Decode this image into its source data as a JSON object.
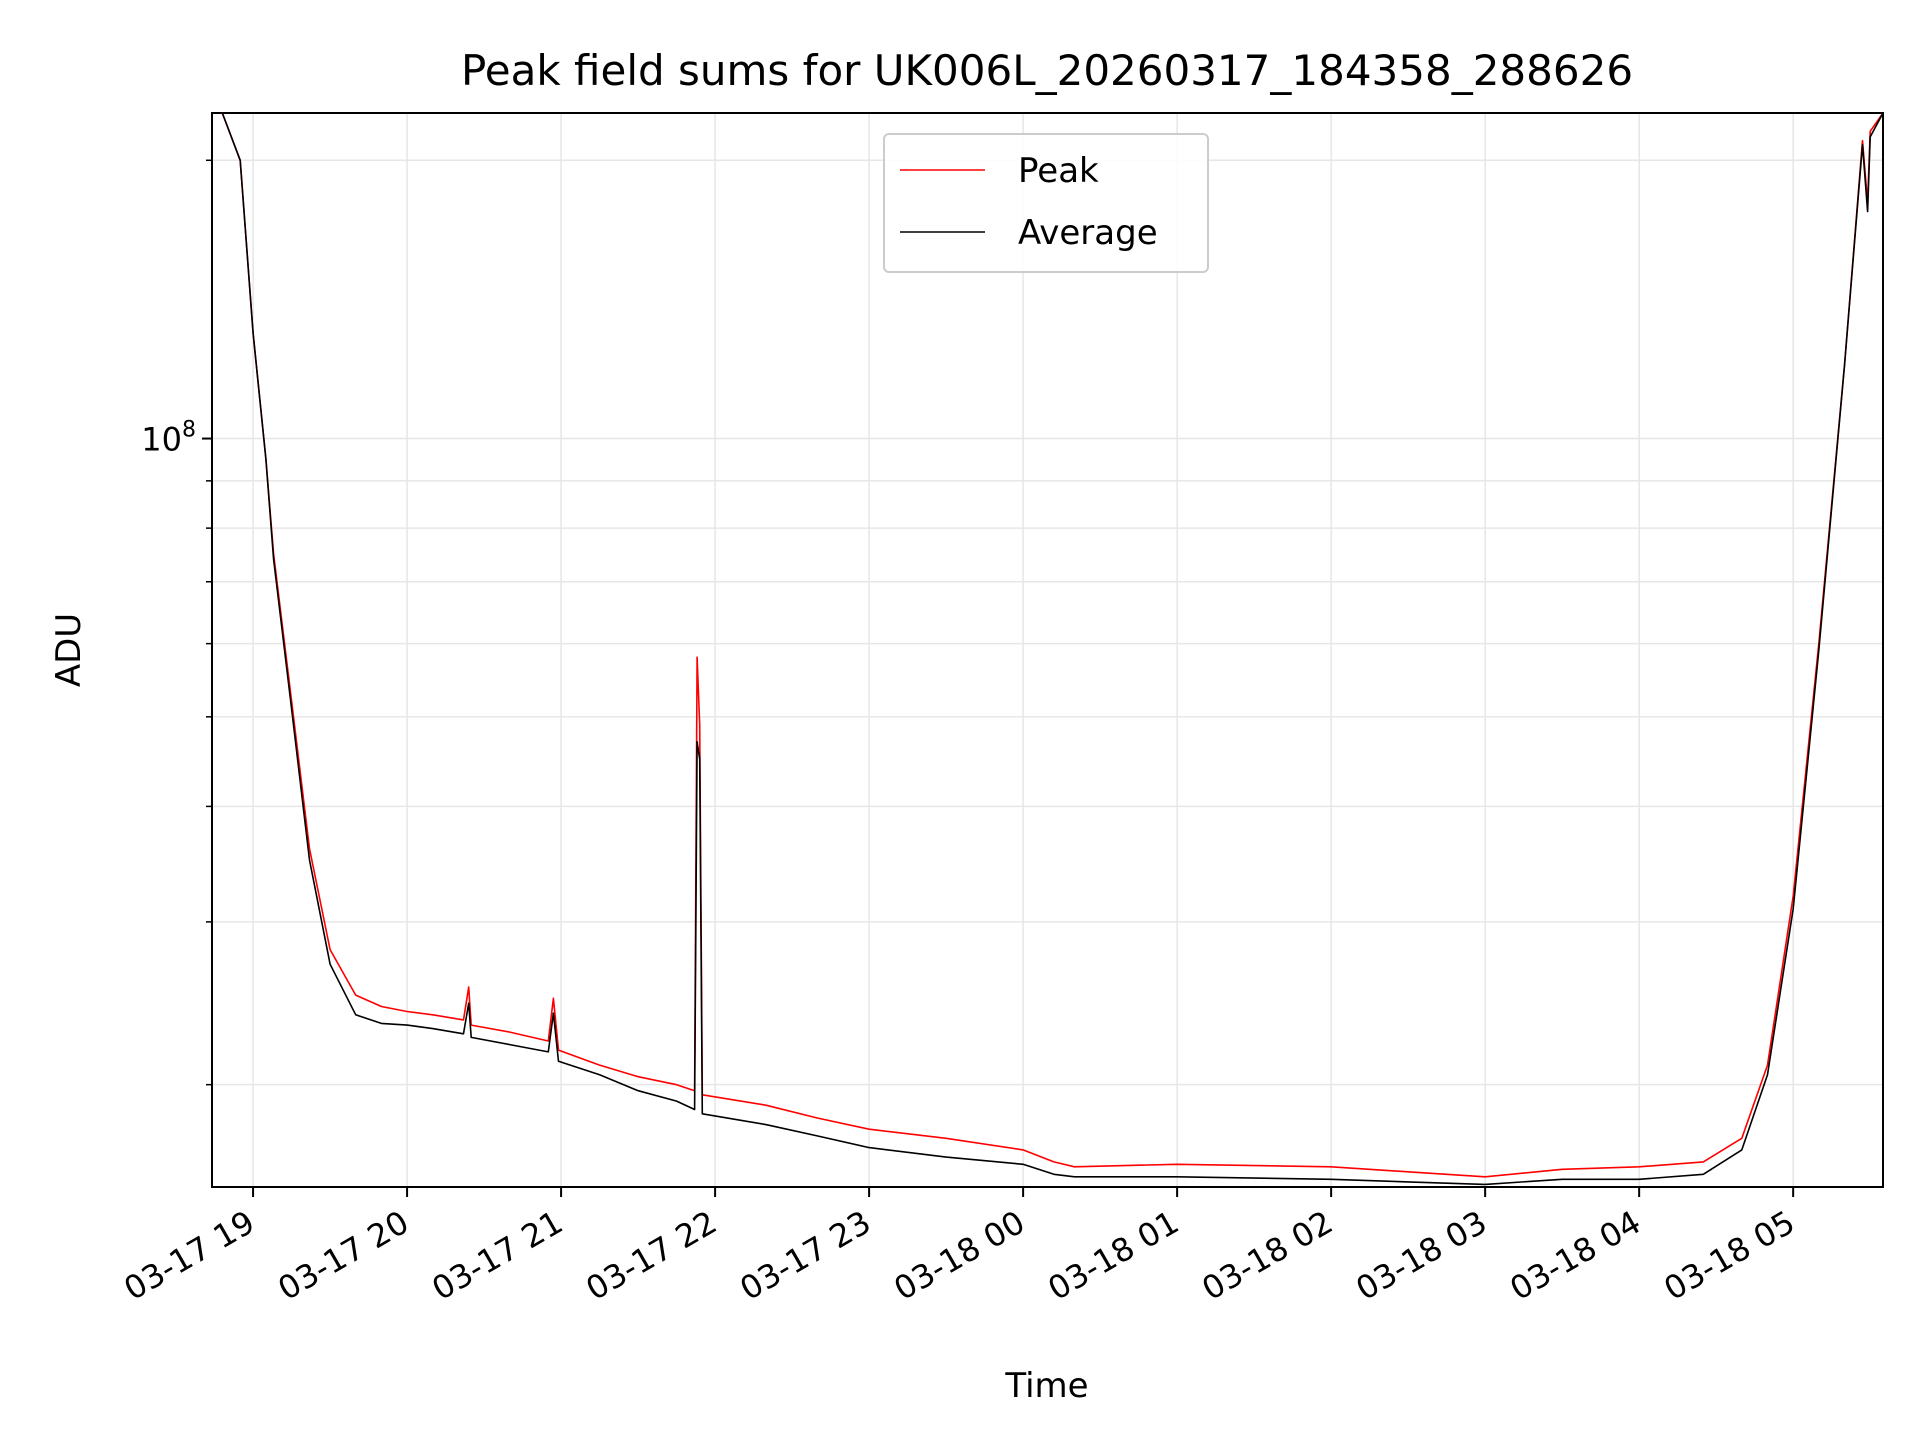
{
  "chart_data": {
    "type": "line",
    "title": "Peak field sums for UK006L_20260317_184358_288626",
    "xlabel": "Time",
    "ylabel": "ADU",
    "x_range": [
      "2026-03-17 18:44",
      "2026-03-18 05:35"
    ],
    "x_ticks": [
      "03-17 19",
      "03-17 20",
      "03-17 21",
      "03-17 22",
      "03-17 23",
      "03-18 00",
      "03-18 01",
      "03-18 02",
      "03-18 03",
      "03-18 04",
      "03-18 05"
    ],
    "y_scale": "log",
    "ylim": [
      15500000,
      225000000
    ],
    "y_major_tick": {
      "value": 100000000,
      "base": "10",
      "exp": "8"
    },
    "y_minor_ticks": [
      20000000,
      30000000,
      40000000,
      50000000,
      60000000,
      70000000,
      80000000,
      90000000,
      200000000
    ],
    "grid": true,
    "legend_position": "upper center",
    "colors": {
      "peak": "#ff0000",
      "average": "#000000",
      "grid": "#e6e6e6",
      "legend_border": "#cccccc"
    },
    "series": [
      {
        "name": "Peak",
        "key": "peak",
        "x": [
          "2026-03-17 18:48",
          "2026-03-17 18:55",
          "2026-03-17 19:00",
          "2026-03-17 19:05",
          "2026-03-17 19:08",
          "2026-03-17 19:15",
          "2026-03-17 19:22",
          "2026-03-17 19:30",
          "2026-03-17 19:40",
          "2026-03-17 19:50",
          "2026-03-17 20:00",
          "2026-03-17 20:10",
          "2026-03-17 20:22",
          "2026-03-17 20:24",
          "2026-03-17 20:25",
          "2026-03-17 20:40",
          "2026-03-17 20:55",
          "2026-03-17 20:57",
          "2026-03-17 20:59",
          "2026-03-17 21:15",
          "2026-03-17 21:30",
          "2026-03-17 21:45",
          "2026-03-17 21:52",
          "2026-03-17 21:53",
          "2026-03-17 21:54",
          "2026-03-17 21:55",
          "2026-03-17 22:20",
          "2026-03-17 22:40",
          "2026-03-17 23:00",
          "2026-03-17 23:30",
          "2026-03-18 00:00",
          "2026-03-18 00:12",
          "2026-03-18 00:20",
          "2026-03-18 01:00",
          "2026-03-18 02:00",
          "2026-03-18 02:30",
          "2026-03-18 03:00",
          "2026-03-18 03:30",
          "2026-03-18 04:00",
          "2026-03-18 04:25",
          "2026-03-18 04:40",
          "2026-03-18 04:50",
          "2026-03-18 05:00",
          "2026-03-18 05:10",
          "2026-03-18 05:20",
          "2026-03-18 05:27",
          "2026-03-18 05:29",
          "2026-03-18 05:30",
          "2026-03-18 05:35"
        ],
        "y": [
          225000000,
          200000000,
          130000000,
          95000000,
          75000000,
          52000000,
          36000000,
          28000000,
          25000000,
          24300000,
          24000000,
          23800000,
          23500000,
          25500000,
          23200000,
          22800000,
          22300000,
          24800000,
          21800000,
          21000000,
          20400000,
          20000000,
          19700000,
          58000000,
          49000000,
          19500000,
          19000000,
          18400000,
          17900000,
          17500000,
          17000000,
          16500000,
          16300000,
          16400000,
          16300000,
          16100000,
          15900000,
          16200000,
          16300000,
          16500000,
          17500000,
          21000000,
          32000000,
          60000000,
          120000000,
          210000000,
          180000000,
          215000000,
          225000000
        ]
      },
      {
        "name": "Average",
        "key": "average",
        "x": [
          "2026-03-17 18:48",
          "2026-03-17 18:55",
          "2026-03-17 19:00",
          "2026-03-17 19:05",
          "2026-03-17 19:08",
          "2026-03-17 19:15",
          "2026-03-17 19:22",
          "2026-03-17 19:30",
          "2026-03-17 19:40",
          "2026-03-17 19:50",
          "2026-03-17 20:00",
          "2026-03-17 20:10",
          "2026-03-17 20:22",
          "2026-03-17 20:24",
          "2026-03-17 20:25",
          "2026-03-17 20:40",
          "2026-03-17 20:55",
          "2026-03-17 20:57",
          "2026-03-17 20:59",
          "2026-03-17 21:15",
          "2026-03-17 21:30",
          "2026-03-17 21:45",
          "2026-03-17 21:52",
          "2026-03-17 21:53",
          "2026-03-17 21:54",
          "2026-03-17 21:55",
          "2026-03-17 22:20",
          "2026-03-17 22:40",
          "2026-03-17 23:00",
          "2026-03-17 23:30",
          "2026-03-18 00:00",
          "2026-03-18 00:12",
          "2026-03-18 00:20",
          "2026-03-18 01:00",
          "2026-03-18 02:00",
          "2026-03-18 02:30",
          "2026-03-18 03:00",
          "2026-03-18 03:30",
          "2026-03-18 04:00",
          "2026-03-18 04:25",
          "2026-03-18 04:40",
          "2026-03-18 04:50",
          "2026-03-18 05:00",
          "2026-03-18 05:10",
          "2026-03-18 05:20",
          "2026-03-18 05:27",
          "2026-03-18 05:29",
          "2026-03-18 05:30",
          "2026-03-18 05:35"
        ],
        "y": [
          225000000,
          200000000,
          130000000,
          95000000,
          74000000,
          51000000,
          35000000,
          27000000,
          23800000,
          23300000,
          23200000,
          23000000,
          22700000,
          24500000,
          22500000,
          22100000,
          21700000,
          23900000,
          21200000,
          20500000,
          19700000,
          19200000,
          18800000,
          47000000,
          45000000,
          18600000,
          18100000,
          17600000,
          17100000,
          16700000,
          16400000,
          16000000,
          15900000,
          15900000,
          15800000,
          15700000,
          15600000,
          15800000,
          15800000,
          16000000,
          17000000,
          20500000,
          31000000,
          59000000,
          120000000,
          208000000,
          176000000,
          212000000,
          225000000
        ]
      }
    ]
  }
}
